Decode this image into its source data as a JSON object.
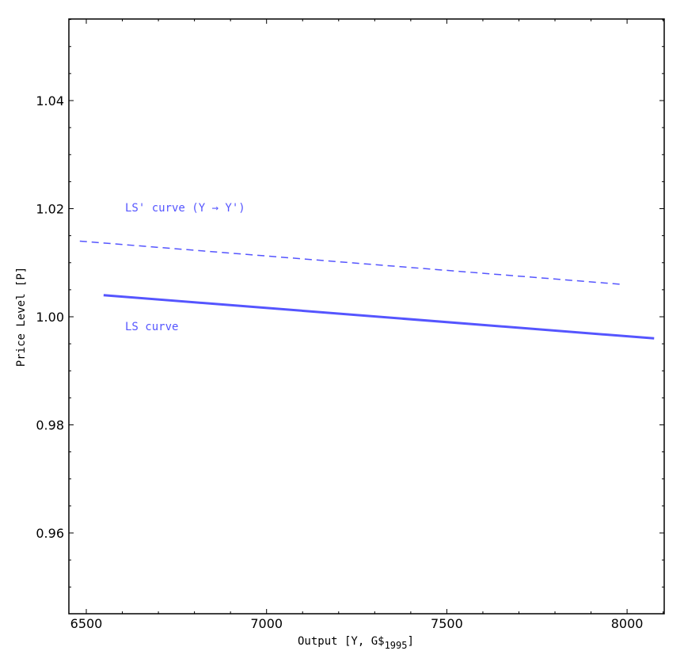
{
  "chart_data": {
    "type": "line",
    "title": "",
    "xlabel": "Output [Y, G$1995]",
    "xlabel_main": "Output [Y, G$",
    "xlabel_sub": "1995",
    "xlabel_close": "]",
    "ylabel": "Price Level [P]",
    "xlim": [
      6475,
      8105
    ],
    "ylim": [
      0.948,
      1.058
    ],
    "x_ticks": [
      6500,
      7000,
      7500,
      8000
    ],
    "x_tick_labels": [
      "6500",
      "7000",
      "7500",
      "8000"
    ],
    "y_ticks": [
      0.96,
      0.98,
      1.0,
      1.02,
      1.04
    ],
    "y_tick_labels": [
      "0.96",
      "0.98",
      "1.00",
      "1.02",
      "1.04"
    ],
    "grid": false,
    "legend": null,
    "series": [
      {
        "name": "LS curve",
        "style": "solid",
        "color": "#5555ff",
        "x": [
          6548,
          8075
        ],
        "y": [
          1.004,
          0.996
        ]
      },
      {
        "name": "LS' curve (Y → Y')",
        "style": "dashed",
        "color": "#5555ff",
        "x": [
          6482,
          7985
        ],
        "y": [
          1.014,
          1.006
        ]
      }
    ],
    "annotations": [
      {
        "text": "LS' curve (Y → Y')",
        "x": 6610,
        "y": 1.02
      },
      {
        "text": "LS curve",
        "x": 6610,
        "y": 0.998
      }
    ]
  }
}
